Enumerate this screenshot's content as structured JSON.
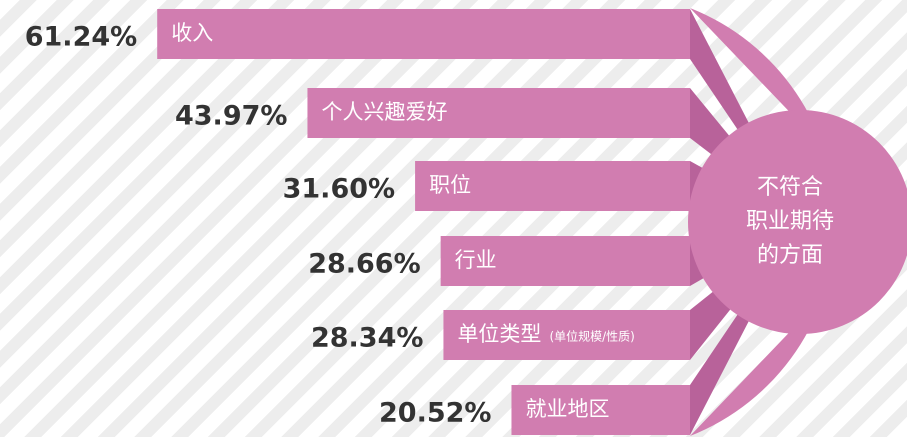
{
  "chart_data": {
    "type": "bar",
    "categories": [
      "收入",
      "个人兴趣爱好",
      "职位",
      "行业",
      "单位类型",
      "就业地区"
    ],
    "values": [
      61.24,
      43.97,
      31.6,
      28.66,
      28.34,
      20.52
    ],
    "value_labels": [
      "61.24%",
      "43.97%",
      "31.60%",
      "28.66%",
      "28.34%",
      "20.52%"
    ],
    "annotation": "(单位规模/性质)",
    "center_label": [
      "不符合",
      "职业期待",
      "的方面"
    ],
    "color": "#d17db0"
  }
}
